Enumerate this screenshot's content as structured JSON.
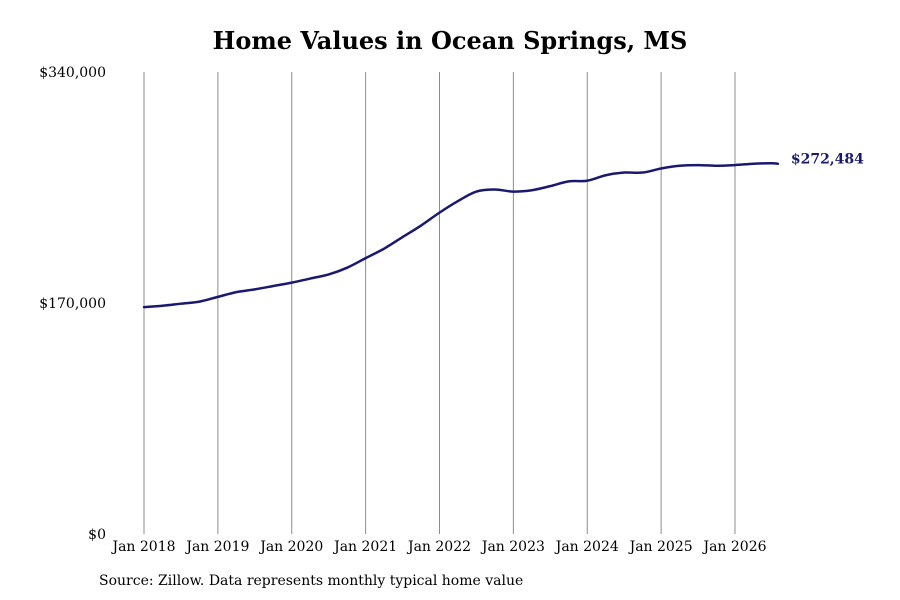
{
  "chart_data": {
    "type": "line",
    "title": "Home Values in Ocean Springs, MS",
    "xlabel": "",
    "ylabel": "",
    "y_ticks": [
      "$0",
      "$170,000",
      "$340,000"
    ],
    "ylim": [
      0,
      340000
    ],
    "x_ticks": [
      "Jan 2018",
      "Jan 2019",
      "Jan 2020",
      "Jan 2021",
      "Jan 2022",
      "Jan 2023",
      "Jan 2024",
      "Jan 2025",
      "Jan 2026"
    ],
    "x_tick_values": [
      2018,
      2019,
      2020,
      2021,
      2022,
      2023,
      2024,
      2025,
      2026
    ],
    "xlim": [
      2017.85,
      2026.9
    ],
    "grid": "vertical",
    "line_color": "#191970",
    "end_label": "$272,484",
    "series": [
      {
        "x": [
          2018.0,
          2018.25,
          2018.5,
          2018.75,
          2019.0,
          2019.25,
          2019.5,
          2019.75,
          2020.0,
          2020.25,
          2020.5,
          2020.75,
          2021.0,
          2021.25,
          2021.5,
          2021.75,
          2022.0,
          2022.25,
          2022.5,
          2022.75,
          2023.0,
          2023.25,
          2023.5,
          2023.75,
          2024.0,
          2024.25,
          2024.5,
          2024.75,
          2025.0,
          2025.25,
          2025.5,
          2025.75,
          2026.0,
          2026.25,
          2026.5,
          2026.58
        ],
        "values": [
          167000,
          168000,
          169500,
          171000,
          174500,
          178000,
          180000,
          182500,
          185000,
          188000,
          191000,
          196000,
          203000,
          210000,
          218500,
          227000,
          236500,
          245000,
          252000,
          253500,
          252000,
          253000,
          256000,
          259500,
          260000,
          264000,
          266000,
          266000,
          269000,
          271000,
          271500,
          271000,
          271500,
          272500,
          272800,
          272484
        ]
      }
    ]
  },
  "source_note": "Source: Zillow. Data represents monthly typical home value"
}
